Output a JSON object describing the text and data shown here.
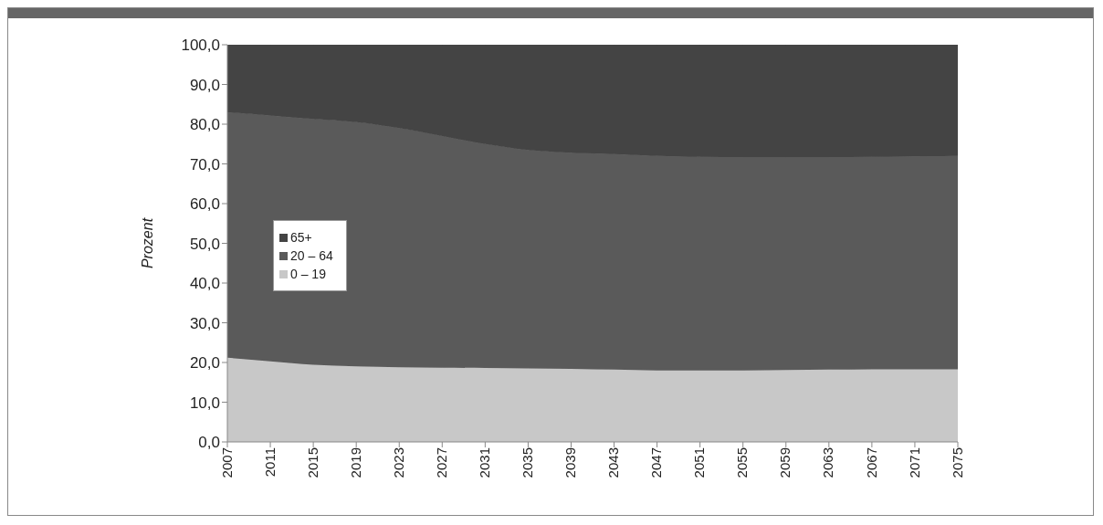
{
  "chart_data": {
    "type": "area",
    "stacked": true,
    "ylabel": "Prozent",
    "x": [
      2007,
      2011,
      2015,
      2019,
      2023,
      2027,
      2031,
      2035,
      2039,
      2043,
      2047,
      2051,
      2055,
      2059,
      2063,
      2067,
      2071,
      2075
    ],
    "series": [
      {
        "name": "0 – 19",
        "color": "#c8c8c8",
        "values": [
          21.2,
          20.3,
          19.4,
          19.0,
          18.8,
          18.7,
          18.6,
          18.5,
          18.4,
          18.2,
          18.0,
          18.0,
          18.0,
          18.1,
          18.2,
          18.3,
          18.3,
          18.3
        ]
      },
      {
        "name": "20 – 64",
        "color": "#5a5a5a",
        "values": [
          61.8,
          61.9,
          61.9,
          61.5,
          60.2,
          58.3,
          56.4,
          55.0,
          54.4,
          54.3,
          54.0,
          53.8,
          53.7,
          53.6,
          53.5,
          53.5,
          53.6,
          53.7
        ]
      },
      {
        "name": "65+",
        "color": "#444444",
        "values": [
          17.0,
          17.8,
          18.7,
          19.5,
          21.0,
          23.0,
          25.0,
          26.5,
          27.2,
          27.5,
          28.0,
          28.2,
          28.3,
          28.3,
          28.3,
          28.2,
          28.1,
          28.0
        ]
      }
    ],
    "xlim": [
      2007,
      2075
    ],
    "xticks": [
      2007,
      2011,
      2015,
      2019,
      2023,
      2027,
      2031,
      2035,
      2039,
      2043,
      2047,
      2051,
      2055,
      2059,
      2063,
      2067,
      2071,
      2075
    ],
    "ylim": [
      0,
      100
    ],
    "yticks": [
      {
        "value": 0,
        "label": "0,0"
      },
      {
        "value": 10,
        "label": "10,0"
      },
      {
        "value": 20,
        "label": "20,0"
      },
      {
        "value": 30,
        "label": "30,0"
      },
      {
        "value": 40,
        "label": "40,0"
      },
      {
        "value": 50,
        "label": "50,0"
      },
      {
        "value": 60,
        "label": "60,0"
      },
      {
        "value": 70,
        "label": "70,0"
      },
      {
        "value": 80,
        "label": "80,0"
      },
      {
        "value": 90,
        "label": "90,0"
      },
      {
        "value": 100,
        "label": "100,0"
      }
    ],
    "grid": false,
    "legend": "left"
  }
}
